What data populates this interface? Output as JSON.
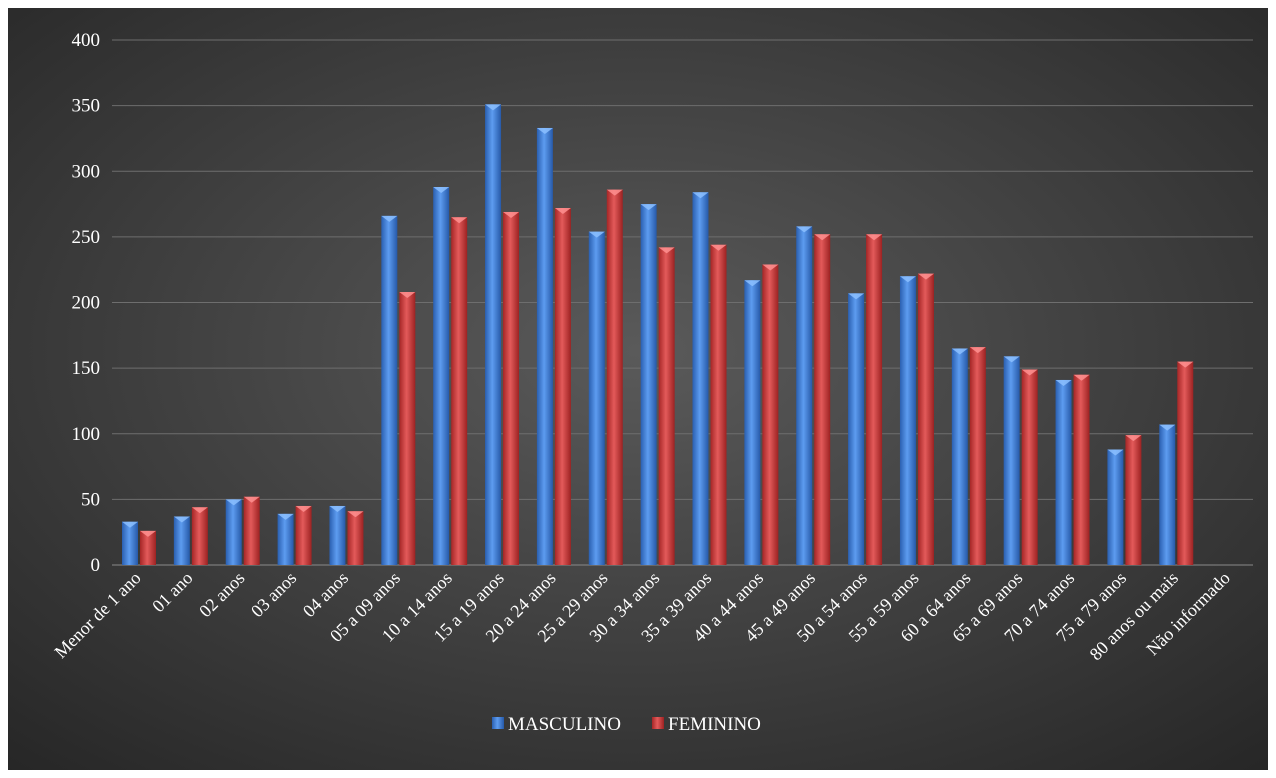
{
  "chart_data": {
    "type": "bar",
    "title": "",
    "xlabel": "",
    "ylabel": "",
    "ylim": [
      0,
      400
    ],
    "yticks": [
      0,
      50,
      100,
      150,
      200,
      250,
      300,
      350,
      400
    ],
    "grid": true,
    "legend_position": "bottom",
    "categories": [
      "Menor de 1 ano",
      "01 ano",
      "02 anos",
      "03 anos",
      "04 anos",
      "05 a 09 anos",
      "10 a 14 anos",
      "15 a 19 anos",
      "20 a 24 anos",
      "25 a 29 anos",
      "30 a 34 anos",
      "35 a 39 anos",
      "40 a 44 anos",
      "45 a 49 anos",
      "50 a 54 anos",
      "55 a 59 anos",
      "60 a 64 anos",
      "65 a 69 anos",
      "70 a 74 anos",
      "75 a 79 anos",
      "80 anos ou mais",
      "Não informado"
    ],
    "series": [
      {
        "name": "MASCULINO",
        "color": "#3f7fd6",
        "values": [
          33,
          37,
          50,
          39,
          45,
          266,
          288,
          351,
          333,
          254,
          275,
          284,
          217,
          258,
          207,
          220,
          165,
          159,
          141,
          88,
          107,
          0
        ]
      },
      {
        "name": "FEMININO",
        "color": "#d23c3c",
        "values": [
          26,
          44,
          52,
          45,
          41,
          208,
          265,
          269,
          272,
          286,
          242,
          244,
          229,
          252,
          252,
          222,
          166,
          149,
          145,
          99,
          155,
          0
        ]
      }
    ]
  }
}
